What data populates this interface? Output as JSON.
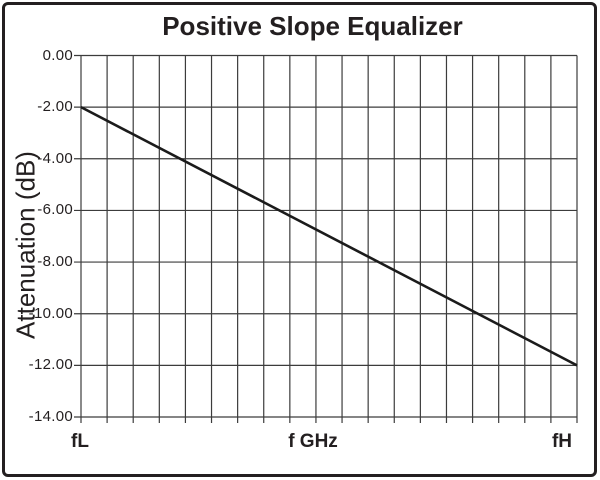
{
  "page": {
    "title": "Positive Slope Equalizer"
  },
  "chart_data": {
    "type": "line",
    "title": "Positive Slope Equalizer",
    "ylabel": "Attenuation (dB)",
    "xlabel": "f GHz",
    "x_axis": {
      "start_label": "fL",
      "mid_label": "f GHz",
      "end_label": "fH",
      "divisions": 19
    },
    "y_axis": {
      "tick_labels": [
        "0.00",
        "-2.00",
        "-4.00",
        "-6.00",
        "-8.00",
        "-10.00",
        "-12.00",
        "-14.00"
      ],
      "max": 0,
      "min": -14,
      "step": -2
    },
    "series": [
      {
        "name": "Attenuation",
        "points": [
          {
            "x": "fL",
            "y": -2.0
          },
          {
            "x": "fH",
            "y": -12.0
          }
        ]
      }
    ],
    "grid": true,
    "legend": false,
    "colors": {
      "line": "#1b1b1b",
      "grid": "#3c3c3c",
      "text": "#231f20",
      "border": "#231f20",
      "background": "#ffffff"
    }
  }
}
